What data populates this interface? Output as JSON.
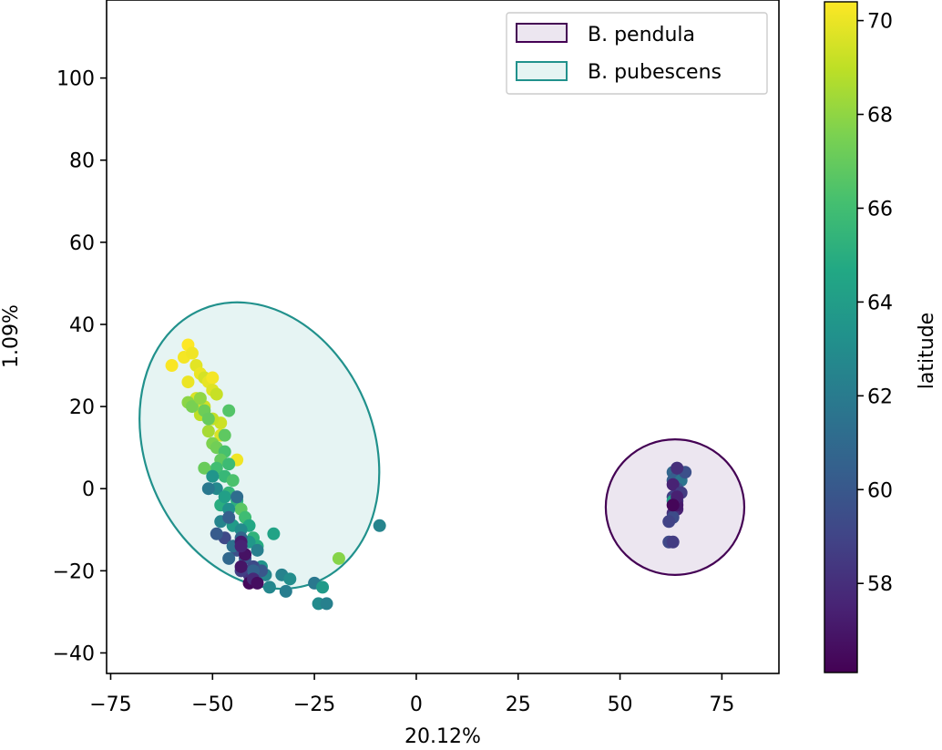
{
  "chart_data": {
    "type": "scatter",
    "title": "",
    "xlabel": "20.12%",
    "ylabel": "1.09%",
    "xlim": [
      -76,
      89
    ],
    "ylim": [
      -45,
      119
    ],
    "xticks": [
      -75,
      -50,
      -25,
      0,
      25,
      50,
      75
    ],
    "xtick_labels": [
      "−75",
      "−50",
      "−25",
      "0",
      "25",
      "50",
      "75"
    ],
    "yticks": [
      -40,
      -20,
      0,
      20,
      40,
      60,
      80,
      100
    ],
    "ytick_labels": [
      "−40",
      "−20",
      "0",
      "20",
      "40",
      "60",
      "80",
      "100"
    ],
    "grid": false,
    "colorbar": {
      "label": "latitude",
      "range": [
        56.1,
        70.4
      ],
      "ticks": [
        58,
        60,
        62,
        64,
        66,
        68,
        70
      ],
      "tick_labels": [
        "58",
        "60",
        "62",
        "64",
        "66",
        "68",
        "70"
      ],
      "colormap": [
        "#440154",
        "#482475",
        "#414487",
        "#355f8d",
        "#2a788e",
        "#21918c",
        "#22a884",
        "#44bf70",
        "#7ad151",
        "#bddf26",
        "#fde725"
      ]
    },
    "legend": {
      "placement": "top-right",
      "entries": [
        {
          "label": "B. pendula",
          "edge_color": "#440154",
          "fill_color": "#ece6f0"
        },
        {
          "label": "B. pubescens",
          "edge_color": "#21918c",
          "fill_color": "#e6f4f3"
        }
      ]
    },
    "ellipses": [
      {
        "name": "B. pendula",
        "center": [
          63.5,
          -4.5
        ],
        "semi_x": 17,
        "semi_y": 16.5,
        "edge_color": "#440154",
        "fill_color": "#ece6f0"
      },
      {
        "name": "B. pubescens",
        "center": [
          -38.5,
          10.5
        ],
        "semi_x": 28,
        "semi_y": 36,
        "angle_deg": -23,
        "edge_color": "#21918c",
        "fill_color": "#e6f4f3"
      }
    ],
    "series": [
      {
        "points": [
          [
            -60,
            30,
            70.3
          ],
          [
            -57,
            32,
            70.2
          ],
          [
            -56,
            35,
            70.4
          ],
          [
            -55,
            33,
            70.1
          ],
          [
            -54,
            30,
            69.8
          ],
          [
            -53,
            28,
            70.0
          ],
          [
            -52,
            27,
            69.5
          ],
          [
            -51,
            26,
            69.9
          ],
          [
            -50,
            27,
            70.2
          ],
          [
            -50,
            24,
            69.7
          ],
          [
            -56,
            26,
            70.0
          ],
          [
            -54,
            22,
            69.6
          ],
          [
            -52,
            20,
            69.4
          ],
          [
            -53,
            18,
            69.0
          ],
          [
            -49,
            23,
            69.2
          ],
          [
            -48,
            16,
            69.3
          ],
          [
            -48,
            13,
            69.6
          ],
          [
            -44,
            7,
            70.1
          ],
          [
            -51,
            14,
            68.5
          ],
          [
            -50,
            17,
            69.1
          ],
          [
            -56,
            21,
            67.9
          ],
          [
            -55,
            20,
            67.5
          ],
          [
            -53,
            22,
            68.0
          ],
          [
            -52,
            19,
            67.2
          ],
          [
            -51,
            17,
            67.0
          ],
          [
            -50,
            11,
            67.6
          ],
          [
            -49,
            10,
            67.3
          ],
          [
            -47,
            13,
            66.8
          ],
          [
            -46,
            19,
            66.5
          ],
          [
            -47,
            9,
            66.2
          ],
          [
            -48,
            7,
            66.9
          ],
          [
            -49,
            5,
            66.0
          ],
          [
            -47,
            3,
            65.6
          ],
          [
            -45,
            2,
            66.3
          ],
          [
            -46,
            -1,
            65.5
          ],
          [
            -44,
            -3,
            65.2
          ],
          [
            -43,
            -5,
            66.7
          ],
          [
            -42,
            -7,
            65.9
          ],
          [
            -41,
            -9,
            64.6
          ],
          [
            -40,
            -12,
            65.3
          ],
          [
            -39,
            -14,
            64.9
          ],
          [
            -46,
            6,
            65.8
          ],
          [
            -52,
            5,
            67.1
          ],
          [
            -48,
            -4,
            65.0
          ],
          [
            -19,
            -17,
            67.8
          ],
          [
            -50,
            3,
            63.5
          ],
          [
            -49,
            0,
            62.8
          ],
          [
            -47,
            -2,
            64.1
          ],
          [
            -46,
            -5,
            63.2
          ],
          [
            -48,
            -8,
            62.5
          ],
          [
            -45,
            -9,
            63.9
          ],
          [
            -43,
            -10,
            62.9
          ],
          [
            -41,
            -13,
            63.6
          ],
          [
            -39,
            -15,
            62.2
          ],
          [
            -38,
            -19,
            63.4
          ],
          [
            -37,
            -21,
            62.6
          ],
          [
            -35,
            -11,
            64.4
          ],
          [
            -33,
            -21,
            62.4
          ],
          [
            -31,
            -22,
            63.0
          ],
          [
            -32,
            -25,
            62.1
          ],
          [
            -25,
            -23,
            61.8
          ],
          [
            -24,
            -28,
            62.9
          ],
          [
            -22,
            -28,
            62.3
          ],
          [
            -23,
            -24,
            63.8
          ],
          [
            -36,
            -24,
            62.7
          ],
          [
            -9,
            -9,
            62.5
          ],
          [
            -51,
            0,
            61.8
          ],
          [
            -44,
            -2,
            61.2
          ],
          [
            -46,
            -7,
            60.4
          ],
          [
            -43,
            -12,
            60.8
          ],
          [
            -44,
            -15,
            59.6
          ],
          [
            -42,
            -17,
            59.9
          ],
          [
            -40,
            -19,
            59.3
          ],
          [
            -38,
            -20,
            59.9
          ],
          [
            -46,
            -17,
            60.9
          ],
          [
            -41,
            -21,
            58.2
          ],
          [
            -40,
            -20,
            60.6
          ],
          [
            -43,
            -20,
            58.7
          ],
          [
            -47,
            -12,
            59.2
          ],
          [
            -49,
            -11,
            60.2
          ],
          [
            -45,
            -14,
            61.4
          ],
          [
            -43,
            -13,
            57.2
          ],
          [
            -42,
            -16,
            56.8
          ],
          [
            -41,
            -23,
            56.4
          ],
          [
            -40,
            -22,
            57.8
          ],
          [
            -39,
            -23,
            56.6
          ],
          [
            -43,
            -14,
            57.5
          ],
          [
            -43,
            -19,
            56.9
          ],
          [
            64,
            5,
            61.2
          ],
          [
            63,
            4,
            60.8
          ],
          [
            65,
            4,
            60.6
          ],
          [
            64,
            3,
            59.8
          ],
          [
            63,
            2,
            60.4
          ],
          [
            65,
            2,
            61.6
          ],
          [
            64,
            0,
            60.0
          ],
          [
            64,
            -1,
            59.1
          ],
          [
            63,
            -2,
            58.8
          ],
          [
            64,
            -3,
            58.4
          ],
          [
            64,
            -5,
            57.4
          ],
          [
            63,
            -6,
            58.1
          ],
          [
            63,
            -7,
            59.4
          ],
          [
            62,
            -8,
            58.9
          ],
          [
            62,
            -13,
            59.2
          ],
          [
            63,
            -13,
            58.6
          ],
          [
            66,
            4,
            59.6
          ],
          [
            64,
            -4,
            57.1
          ],
          [
            63,
            1,
            57.5
          ],
          [
            65,
            -1,
            58.6
          ],
          [
            64,
            5,
            58.0
          ],
          [
            63,
            -3,
            64.2
          ],
          [
            64,
            -2,
            57.4
          ],
          [
            63,
            -4,
            56.3
          ]
        ]
      }
    ]
  }
}
